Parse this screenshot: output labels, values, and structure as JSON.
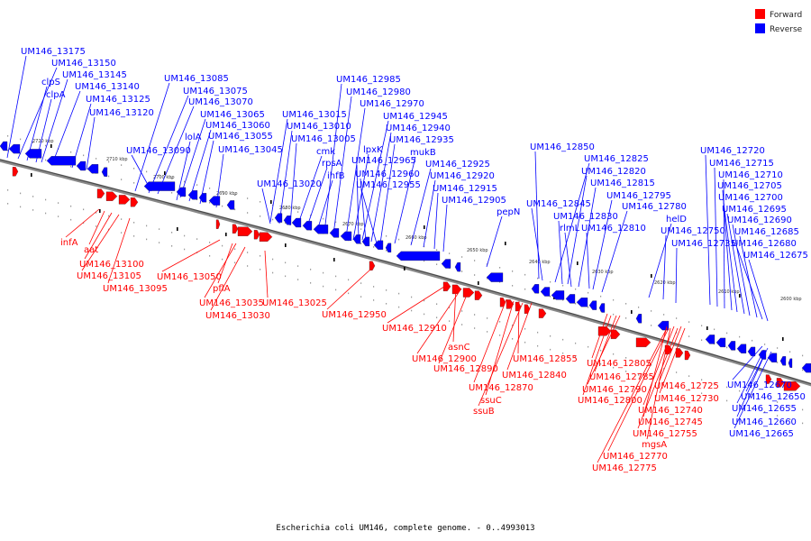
{
  "caption": "Escherichia coli UM146, complete genome. - 0..4993013",
  "legend": [
    {
      "label": "Forward",
      "color": "#ff0000"
    },
    {
      "label": "Reverse",
      "color": "#0000ff"
    }
  ],
  "colors": {
    "forward": "#ff0000",
    "reverse": "#0000ff",
    "backbone": "#666666"
  },
  "ticks": [
    "2720 kbp",
    "2710 kbp",
    "2700 kbp",
    "2690 kbp",
    "2680 kbp",
    "2670 kbp",
    "2660 kbp",
    "2650 kbp",
    "2640 kbp",
    "2630 kbp",
    "2620 kbp",
    "2610 kbp",
    "2600 kbp"
  ],
  "reverse_labels": [
    "UM146_13175",
    "UM146_13150",
    "clpS",
    "clpA",
    "UM146_13145",
    "UM146_13140",
    "UM146_13125",
    "UM146_13120",
    "UM146_13085",
    "UM146_13075",
    "UM146_13070",
    "UM146_13090",
    "UM146_13065",
    "lolA",
    "UM146_13060",
    "UM146_13055",
    "UM146_13045",
    "UM146_13015",
    "UM146_13010",
    "UM146_13005",
    "UM146_13020",
    "cmk",
    "rpsA",
    "ihfB",
    "UM146_12985",
    "UM146_12980",
    "UM146_12970",
    "lpxK",
    "UM146_12945",
    "UM146_12940",
    "UM146_12935",
    "mukB",
    "UM146_12965",
    "UM146_12960",
    "UM146_12955",
    "UM146_12925",
    "UM146_12920",
    "UM146_12915",
    "UM146_12905",
    "pepN",
    "UM146_12850",
    "UM146_12845",
    "UM146_12825",
    "UM146_12820",
    "UM146_12815",
    "UM146_12830",
    "UM146_12795",
    "UM146_12780",
    "rlmL",
    "UM146_12810",
    "helD",
    "UM146_12750",
    "UM146_12735",
    "UM146_12720",
    "UM146_12715",
    "UM146_12710",
    "UM146_12705",
    "UM146_12700",
    "UM146_12695",
    "UM146_12690",
    "UM146_12685",
    "UM146_12680",
    "UM146_12675",
    "UM146_12670",
    "UM146_12650",
    "UM146_12655",
    "UM146_12660",
    "UM146_12665"
  ],
  "forward_labels": [
    "infA",
    "aat",
    "UM146_13100",
    "UM146_13105",
    "UM146_13095",
    "UM146_13050",
    "pflA",
    "UM146_13035",
    "UM146_13030",
    "UM146_13025",
    "UM146_12950",
    "UM146_12910",
    "asnC",
    "UM146_12900",
    "UM146_12890",
    "UM146_12870",
    "ssuC",
    "ssuB",
    "UM146_12855",
    "UM146_12840",
    "UM146_12805",
    "UM146_12785",
    "UM146_12790",
    "UM146_12800",
    "UM146_12725",
    "UM146_12730",
    "UM146_12740",
    "UM146_12745",
    "UM146_12755",
    "mgsA",
    "UM146_12770",
    "UM146_12775"
  ]
}
